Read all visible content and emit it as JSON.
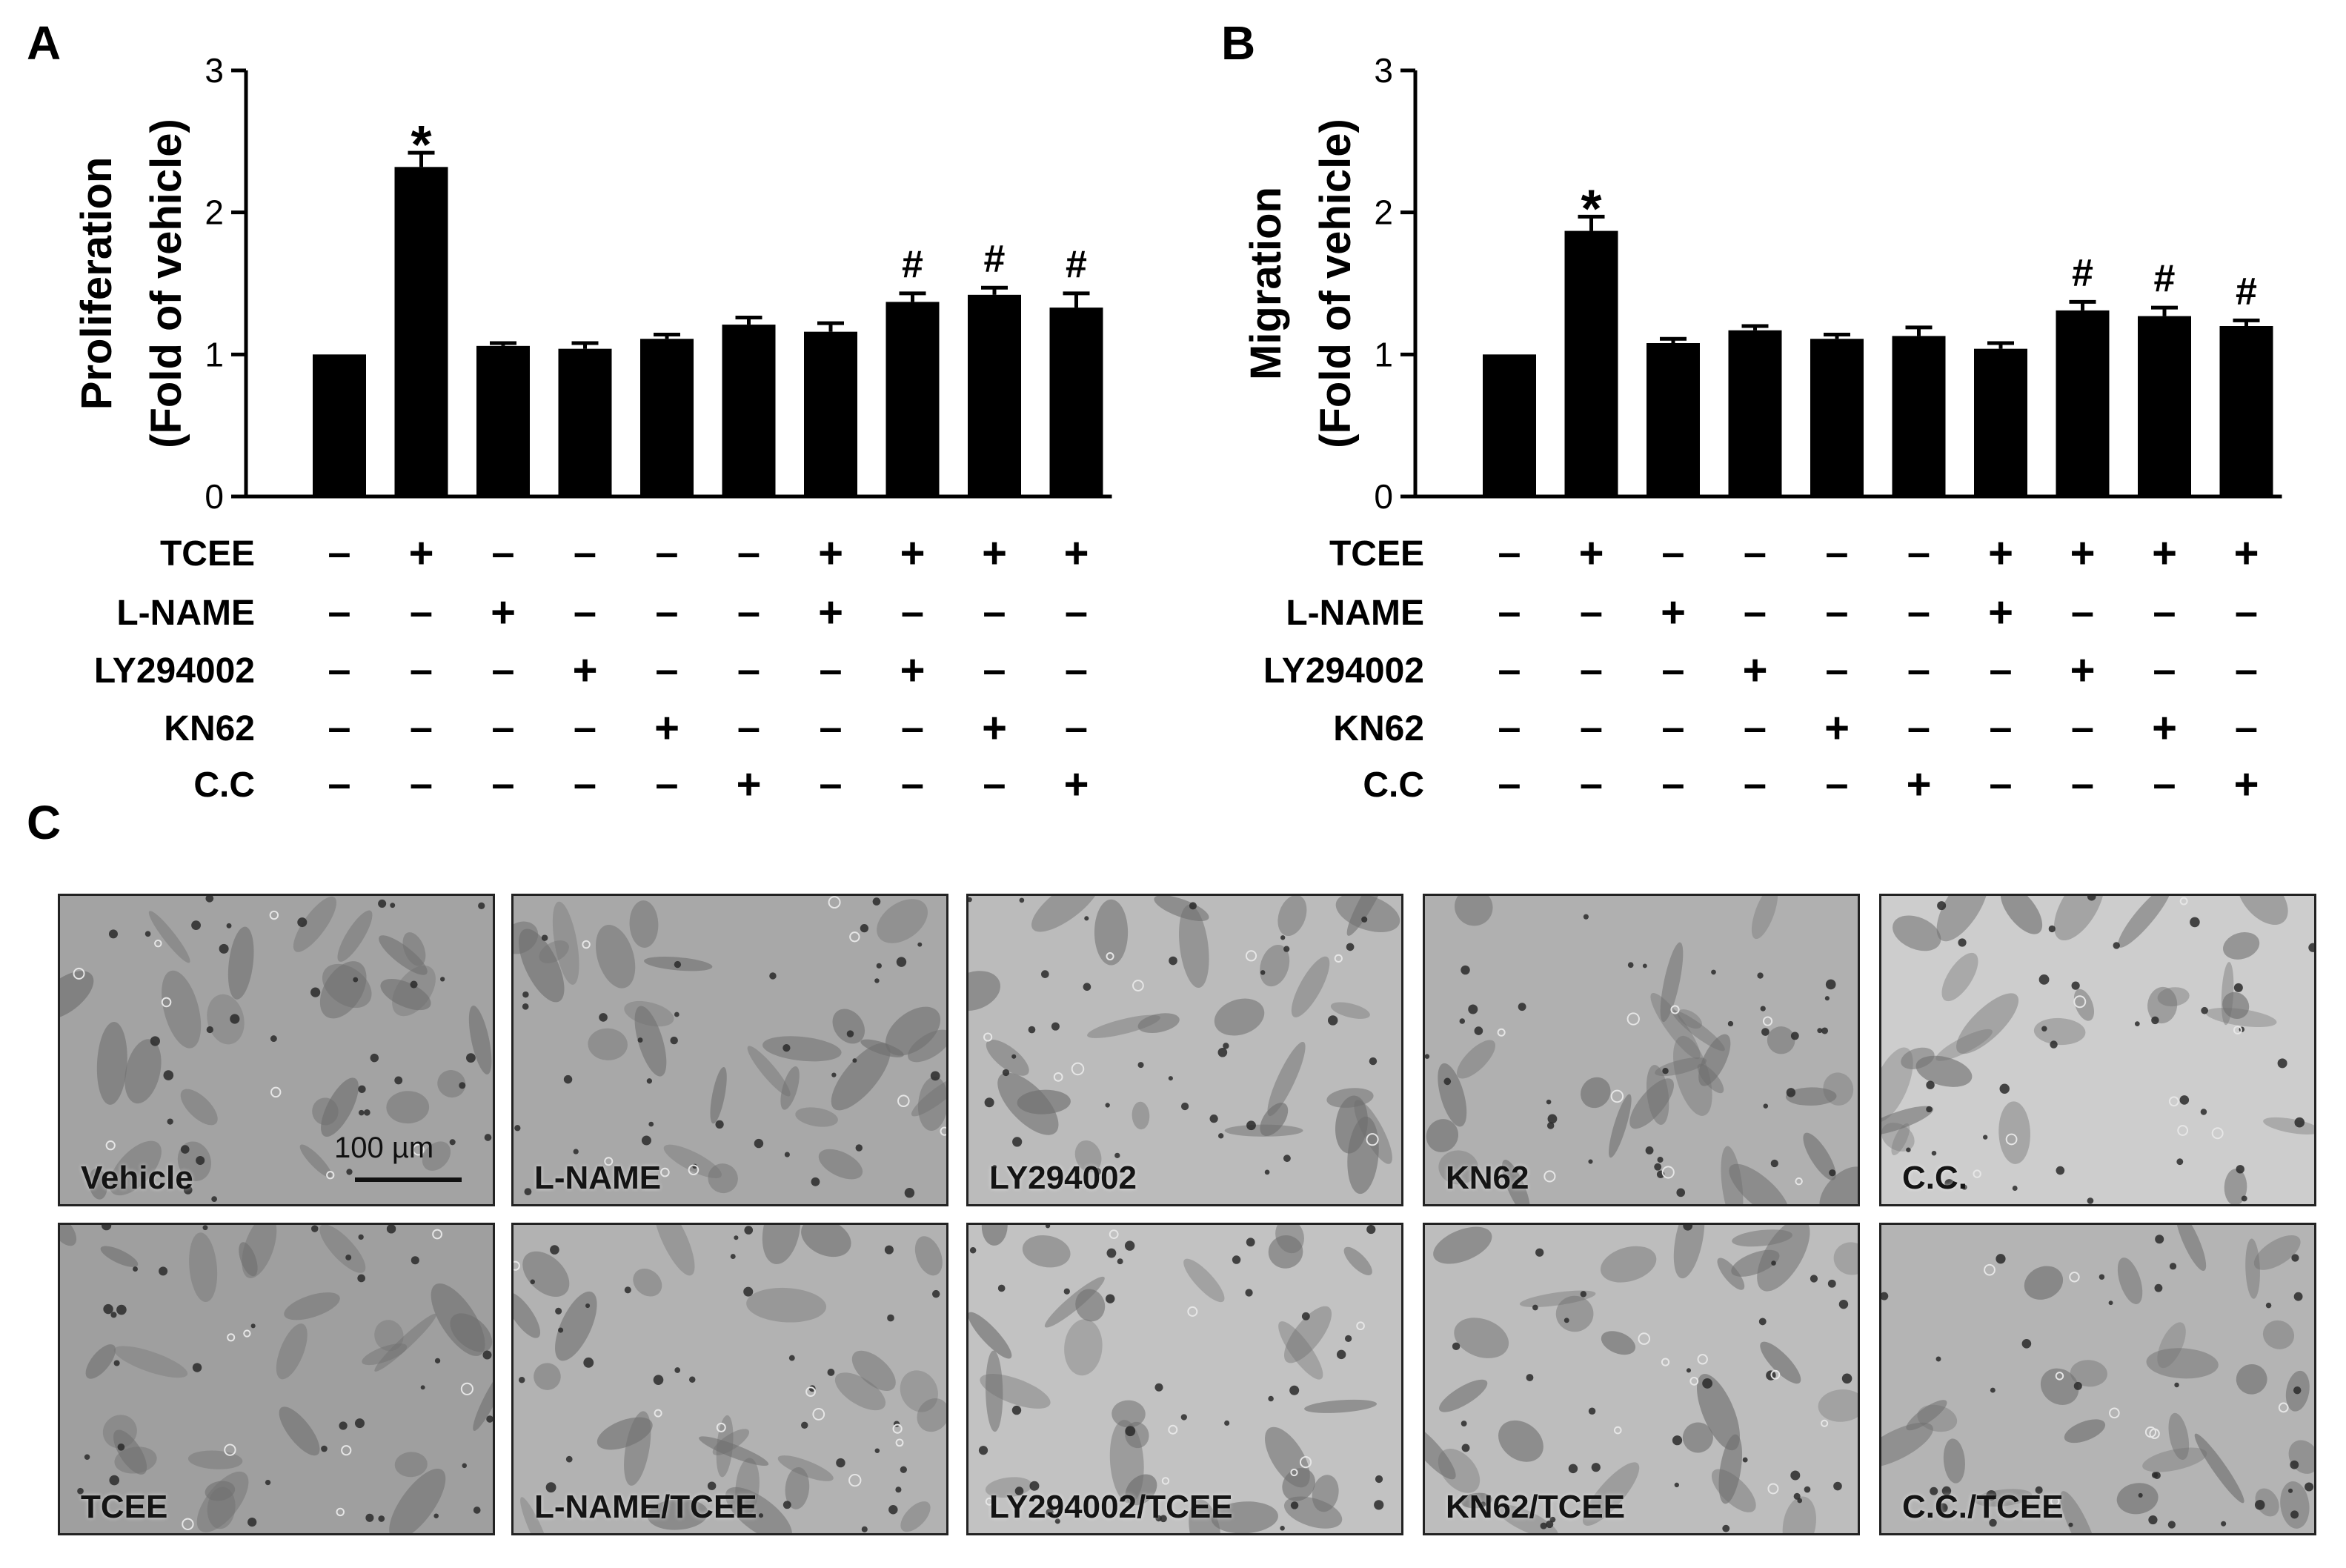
{
  "panels": {
    "a": "A",
    "b": "B",
    "c": "C"
  },
  "treatments": [
    "TCEE",
    "L-NAME",
    "LY294002",
    "KN62",
    "C.C"
  ],
  "chart_data": [
    {
      "type": "bar",
      "panel": "A",
      "ylabel": "Proliferation",
      "ylabel2": "(Fold of vehicle)",
      "ylim": [
        0,
        3
      ],
      "yticks": [
        0,
        1,
        2,
        3
      ],
      "values": [
        1.0,
        2.32,
        1.06,
        1.04,
        1.11,
        1.21,
        1.16,
        1.37,
        1.42,
        1.33
      ],
      "errors": [
        0.0,
        0.1,
        0.02,
        0.04,
        0.03,
        0.05,
        0.06,
        0.06,
        0.05,
        0.1
      ],
      "annotations": [
        "",
        "*",
        "",
        "",
        "",
        "",
        "",
        "#",
        "#",
        "#"
      ],
      "conditions": {
        "TCEE": [
          "-",
          "+",
          "-",
          "-",
          "-",
          "-",
          "+",
          "+",
          "+",
          "+"
        ],
        "L-NAME": [
          "-",
          "-",
          "+",
          "-",
          "-",
          "-",
          "+",
          "-",
          "-",
          "-"
        ],
        "LY294002": [
          "-",
          "-",
          "-",
          "+",
          "-",
          "-",
          "-",
          "+",
          "-",
          "-"
        ],
        "KN62": [
          "-",
          "-",
          "-",
          "-",
          "+",
          "-",
          "-",
          "-",
          "+",
          "-"
        ],
        "C.C": [
          "-",
          "-",
          "-",
          "-",
          "-",
          "+",
          "-",
          "-",
          "-",
          "+"
        ]
      },
      "grid": false,
      "bar_color": "#000000"
    },
    {
      "type": "bar",
      "panel": "B",
      "ylabel": "Migration",
      "ylabel2": "(Fold of vehicle)",
      "ylim": [
        0,
        3
      ],
      "yticks": [
        0,
        1,
        2,
        3
      ],
      "values": [
        1.0,
        1.87,
        1.08,
        1.17,
        1.11,
        1.13,
        1.04,
        1.31,
        1.27,
        1.2
      ],
      "errors": [
        0.0,
        0.1,
        0.03,
        0.03,
        0.03,
        0.06,
        0.04,
        0.06,
        0.06,
        0.04
      ],
      "annotations": [
        "",
        "*",
        "",
        "",
        "",
        "",
        "",
        "#",
        "#",
        "#"
      ],
      "conditions": {
        "TCEE": [
          "-",
          "+",
          "-",
          "-",
          "-",
          "-",
          "+",
          "+",
          "+",
          "+"
        ],
        "L-NAME": [
          "-",
          "-",
          "+",
          "-",
          "-",
          "-",
          "+",
          "-",
          "-",
          "-"
        ],
        "LY294002": [
          "-",
          "-",
          "-",
          "+",
          "-",
          "-",
          "-",
          "+",
          "-",
          "-"
        ],
        "KN62": [
          "-",
          "-",
          "-",
          "-",
          "+",
          "-",
          "-",
          "-",
          "+",
          "-"
        ],
        "C.C": [
          "-",
          "-",
          "-",
          "-",
          "-",
          "+",
          "-",
          "-",
          "-",
          "+"
        ]
      },
      "grid": false,
      "bar_color": "#000000"
    }
  ],
  "micrographs": {
    "scale_bar_label": "100 µm",
    "row1": [
      "Vehicle",
      "L-NAME",
      "LY294002",
      "KN62",
      "C.C."
    ],
    "row2": [
      "TCEE",
      "L-NAME/TCEE",
      "LY294002/TCEE",
      "KN62/TCEE",
      "C.C./TCEE"
    ]
  }
}
